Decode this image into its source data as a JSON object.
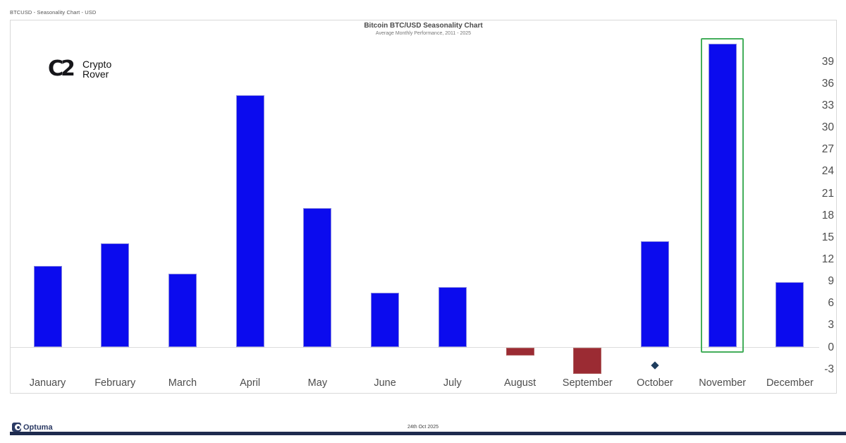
{
  "window": {
    "top_left_label": "BTCUSD - Seasonality Chart - USD"
  },
  "branding": {
    "icon": "crypto-rover-cr-monogram",
    "monogram": "C2",
    "line1": "Crypto",
    "line2": "Rover"
  },
  "chart_data": {
    "type": "bar",
    "title": "Bitcoin BTC/USD Seasonality Chart",
    "subtitle": "Average Monthly Performance, 2011 - 2025",
    "categories": [
      "January",
      "February",
      "March",
      "April",
      "May",
      "June",
      "July",
      "August",
      "September",
      "October",
      "November",
      "December"
    ],
    "values": [
      11.1,
      14.2,
      10.1,
      34.4,
      19.0,
      7.5,
      8.2,
      -1.1,
      -3.6,
      14.5,
      41.5,
      8.9
    ],
    "yticks": [
      39,
      36,
      33,
      30,
      27,
      24,
      21,
      18,
      15,
      12,
      9,
      6,
      3,
      0,
      -3
    ],
    "ylim": [
      -6.3,
      44.7
    ],
    "grid": "zero-line-only",
    "legend": "none",
    "bar_color_positive": "#0b0bee",
    "bar_color_negative": "#9b2b33",
    "highlight": {
      "month": "November",
      "index": 10,
      "box_color": "#44ae5b"
    },
    "marker": {
      "month": "October",
      "index": 9,
      "value": -2.5,
      "shape": "diamond",
      "color": "#1e3d5e"
    }
  },
  "footer": {
    "brand": "Optuma",
    "date": "24th Oct 2025",
    "bar_color": "#1e2b4e"
  }
}
